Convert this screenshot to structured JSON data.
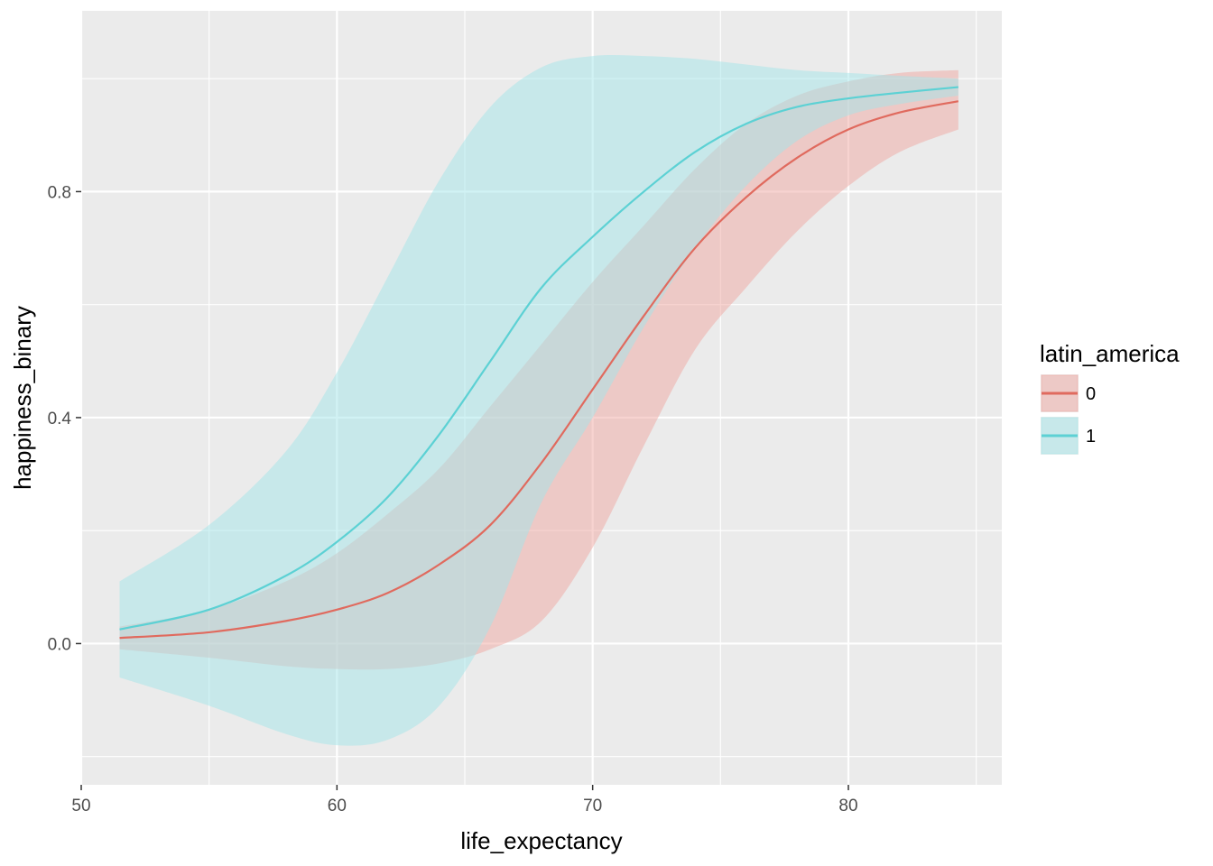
{
  "chart_data": {
    "type": "line",
    "xlabel": "life_expectancy",
    "ylabel": "happiness_binary",
    "xlim": [
      50,
      86
    ],
    "ylim": [
      -0.25,
      1.12
    ],
    "x_ticks": [
      50,
      60,
      70,
      80
    ],
    "x_tick_labels": [
      "50",
      "60",
      "70",
      "80"
    ],
    "y_ticks": [
      0.0,
      0.4,
      0.8
    ],
    "y_tick_labels": [
      "0.0",
      "0.4",
      "0.8"
    ],
    "grid": true,
    "legend": {
      "title": "latin_america",
      "position": "right",
      "entries": [
        "0",
        "1"
      ]
    },
    "colors": {
      "panel_bg": "#ebebeb",
      "grid": "#ffffff",
      "series_0": "#e06a5e",
      "series_1": "#5cd1d4",
      "ribbon_0": "#f0a8a2",
      "ribbon_1": "#a3e6e9"
    },
    "series": [
      {
        "name": "0",
        "x": [
          51.5,
          55,
          58,
          60,
          62,
          64,
          66,
          68,
          70,
          72,
          74,
          76,
          78,
          80,
          82,
          84.3
        ],
        "y": [
          0.01,
          0.02,
          0.04,
          0.06,
          0.09,
          0.14,
          0.21,
          0.32,
          0.45,
          0.58,
          0.7,
          0.79,
          0.86,
          0.91,
          0.94,
          0.96
        ],
        "lower": [
          -0.01,
          -0.025,
          -0.04,
          -0.045,
          -0.045,
          -0.035,
          -0.01,
          0.04,
          0.17,
          0.35,
          0.52,
          0.63,
          0.73,
          0.81,
          0.87,
          0.91
        ],
        "upper": [
          0.03,
          0.06,
          0.11,
          0.16,
          0.23,
          0.31,
          0.42,
          0.53,
          0.64,
          0.74,
          0.84,
          0.92,
          0.97,
          0.995,
          1.01,
          1.015
        ]
      },
      {
        "name": "1",
        "x": [
          51.5,
          55,
          58,
          60,
          62,
          64,
          66,
          68,
          70,
          72,
          74,
          76,
          78,
          80,
          82,
          84.3
        ],
        "y": [
          0.025,
          0.06,
          0.12,
          0.18,
          0.26,
          0.37,
          0.5,
          0.63,
          0.72,
          0.8,
          0.87,
          0.92,
          0.95,
          0.965,
          0.975,
          0.985
        ],
        "lower": [
          -0.06,
          -0.11,
          -0.16,
          -0.18,
          -0.17,
          -0.11,
          0.03,
          0.25,
          0.4,
          0.56,
          0.7,
          0.81,
          0.89,
          0.935,
          0.955,
          0.97
        ],
        "upper": [
          0.11,
          0.21,
          0.34,
          0.48,
          0.65,
          0.82,
          0.95,
          1.02,
          1.04,
          1.04,
          1.035,
          1.025,
          1.015,
          1.01,
          1.005,
          1.0
        ]
      }
    ]
  }
}
